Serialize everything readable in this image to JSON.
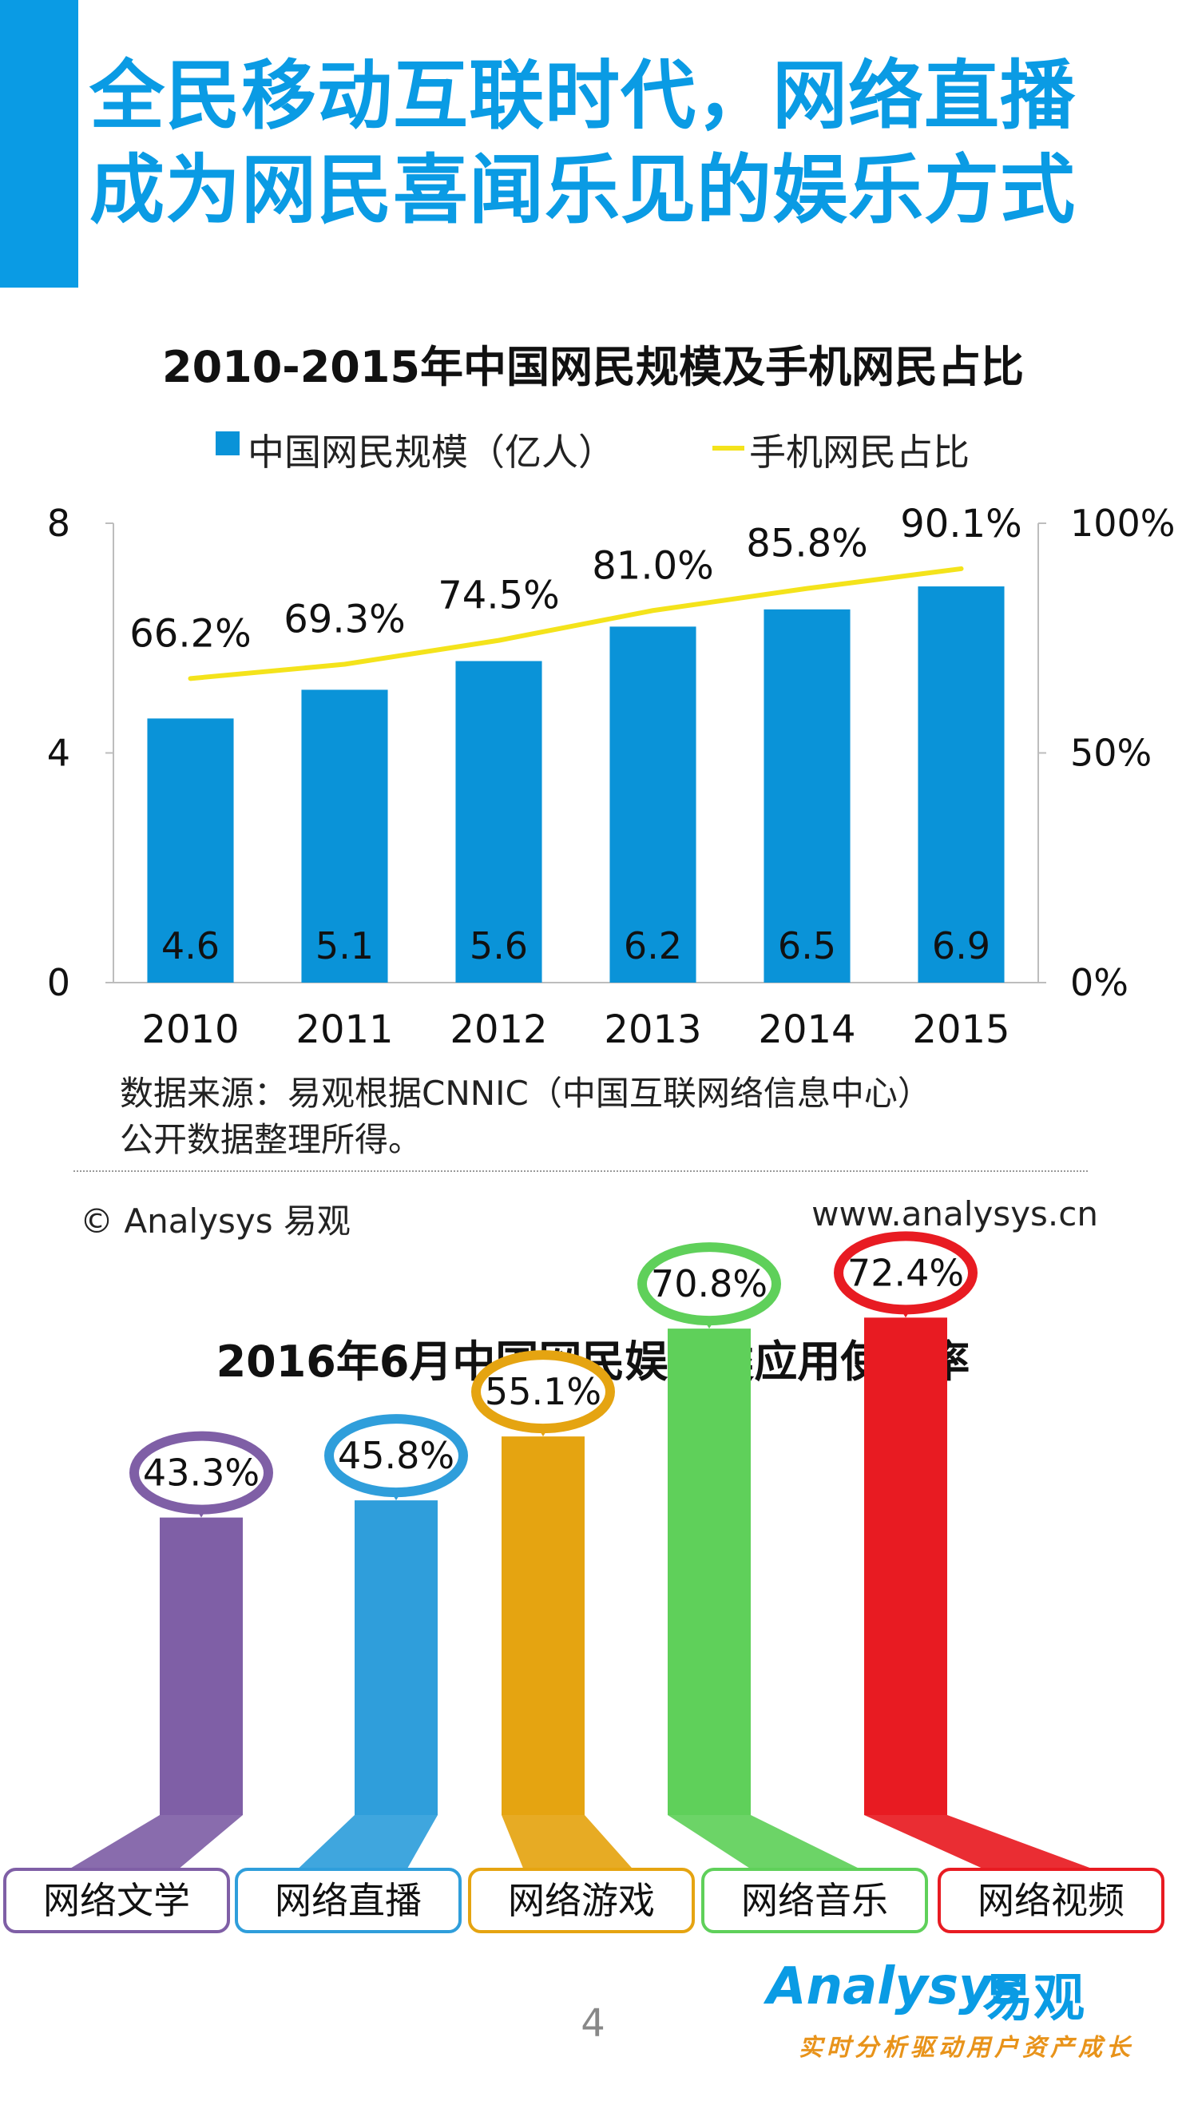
{
  "header": {
    "title_line1": "全民移动互联时代，网络直播",
    "title_line2": "成为网民喜闻乐见的娱乐方式"
  },
  "colors": {
    "accent": "#0a9be4",
    "bar": "#0a93d8",
    "line": "#f4e31b"
  },
  "chart_data": [
    {
      "type": "bar",
      "title": "2010-2015年中国网民规模及手机网民占比",
      "categories": [
        "2010",
        "2011",
        "2012",
        "2013",
        "2014",
        "2015"
      ],
      "series": [
        {
          "name": "中国网民规模（亿人）",
          "type": "bar",
          "axis": "left",
          "values": [
            4.6,
            5.1,
            5.6,
            6.2,
            6.5,
            6.9
          ]
        },
        {
          "name": "手机网民占比",
          "type": "line",
          "axis": "right",
          "values": [
            66.2,
            69.3,
            74.5,
            81.0,
            85.8,
            90.1
          ]
        }
      ],
      "value_labels": [
        "4.6",
        "5.1",
        "5.6",
        "6.2",
        "6.5",
        "6.9"
      ],
      "line_labels": [
        "66.2%",
        "69.3%",
        "74.5%",
        "81.0%",
        "85.8%",
        "90.1%"
      ],
      "ylim": [
        0,
        8
      ],
      "yticks": [
        0,
        4,
        8
      ],
      "ytick_labels": [
        "0",
        "4",
        "8"
      ],
      "y2lim": [
        0,
        100
      ],
      "y2ticks": [
        0,
        50,
        100
      ],
      "y2tick_labels": [
        "0%",
        "50%",
        "100%"
      ],
      "legend": "top"
    },
    {
      "type": "bar",
      "title": "2016年6月中国网民娱乐类应用使用率",
      "categories": [
        "网络文学",
        "网络直播",
        "网络游戏",
        "网络音乐",
        "网络视频"
      ],
      "values": [
        43.3,
        45.8,
        55.1,
        70.8,
        72.4
      ],
      "value_labels": [
        "43.3%",
        "45.8%",
        "55.1%",
        "70.8%",
        "72.4%"
      ],
      "colors": [
        "#7f5fa6",
        "#2f9edb",
        "#e5a411",
        "#5fd05a",
        "#e81b22"
      ]
    }
  ],
  "source": {
    "line1": "数据来源：易观根据CNNIC（中国互联网络信息中心）",
    "line2": "公开数据整理所得。"
  },
  "footer": {
    "copyright": "© Analysys 易观",
    "website": "www.analysys.cn",
    "page_number": "4"
  },
  "logo": {
    "english": "Analysys",
    "chinese": "易观",
    "slogan": "实时分析驱动用户资产成长"
  }
}
